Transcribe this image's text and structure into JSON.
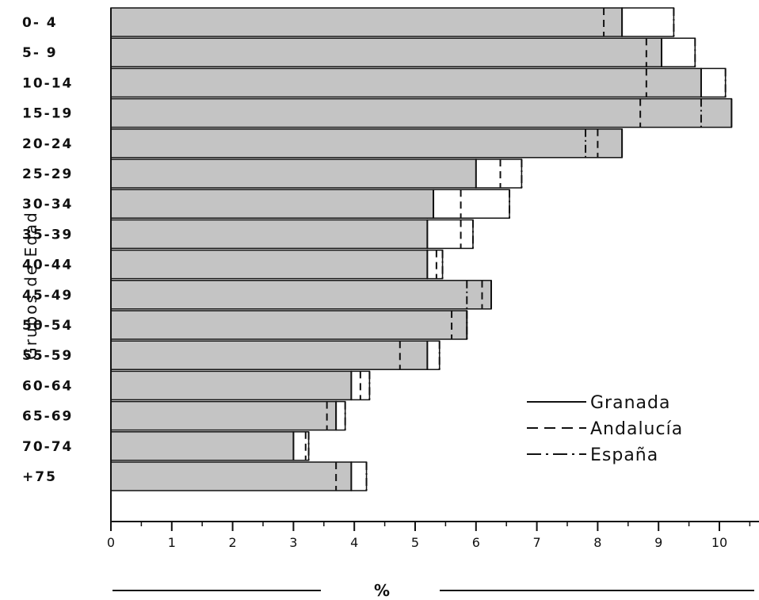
{
  "chart_data": {
    "type": "bar",
    "orientation": "horizontal",
    "ylabel": "Grupos de Edad",
    "xlabel": "%",
    "xlim": [
      0,
      11
    ],
    "xticks": [
      "0",
      "1",
      "2",
      "3",
      "4",
      "5",
      "6",
      "7",
      "8",
      "9",
      "10"
    ],
    "categories": [
      "0- 4",
      "5- 9",
      "10-14",
      "15-19",
      "20-24",
      "25-29",
      "30-34",
      "35-39",
      "40-44",
      "45-49",
      "50-54",
      "55-59",
      "60-64",
      "65-69",
      "70-74",
      "+75"
    ],
    "series": [
      {
        "name": "Granada",
        "style": "solid",
        "values": [
          8.4,
          9.05,
          9.7,
          10.2,
          8.4,
          6.0,
          5.3,
          5.2,
          5.2,
          6.25,
          5.85,
          5.2,
          3.95,
          3.7,
          3.0,
          3.95
        ]
      },
      {
        "name": "Andalucía",
        "style": "dashed",
        "values": [
          8.1,
          8.8,
          8.8,
          8.7,
          8.0,
          6.4,
          5.75,
          5.75,
          5.35,
          6.1,
          5.6,
          4.75,
          4.1,
          3.55,
          3.2,
          3.7
        ]
      },
      {
        "name": "España",
        "style": "dash-dot",
        "values": [
          9.25,
          9.6,
          10.1,
          9.7,
          7.8,
          6.75,
          6.55,
          5.95,
          5.45,
          5.85,
          5.85,
          5.4,
          4.25,
          3.85,
          3.25,
          4.2
        ]
      }
    ],
    "grid": false,
    "legend_position": "bottom-right",
    "colors": {
      "bar_fill": "#c4c4c4",
      "line": "#111111",
      "background": "#ffffff"
    }
  }
}
